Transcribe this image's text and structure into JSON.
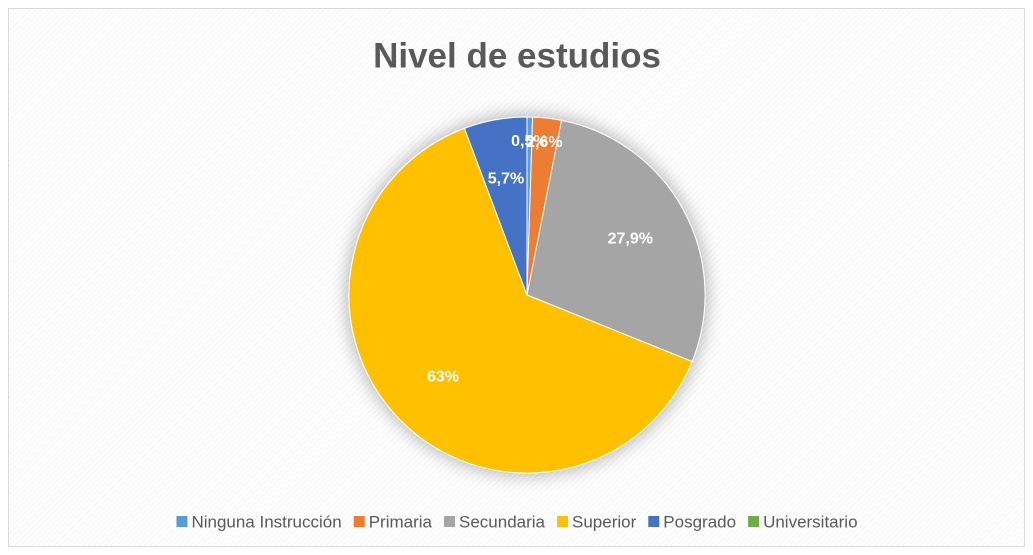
{
  "chart_data": {
    "type": "pie",
    "title": "Nivel de estudios",
    "categories": [
      "Ninguna Instrucción",
      "Primaria",
      "Secundaria",
      "Superior",
      "Posgrado",
      "Universitario"
    ],
    "values": [
      0.5,
      2.6,
      27.9,
      63,
      5.7,
      0
    ],
    "value_labels": [
      "0,5%",
      "2,6%",
      "27,9%",
      "63%",
      "5,7%",
      null
    ],
    "colors": [
      "#5b9bd5",
      "#ed7d31",
      "#a5a5a5",
      "#ffc000",
      "#4472c4",
      "#70ad47"
    ],
    "legend": "bottom"
  }
}
